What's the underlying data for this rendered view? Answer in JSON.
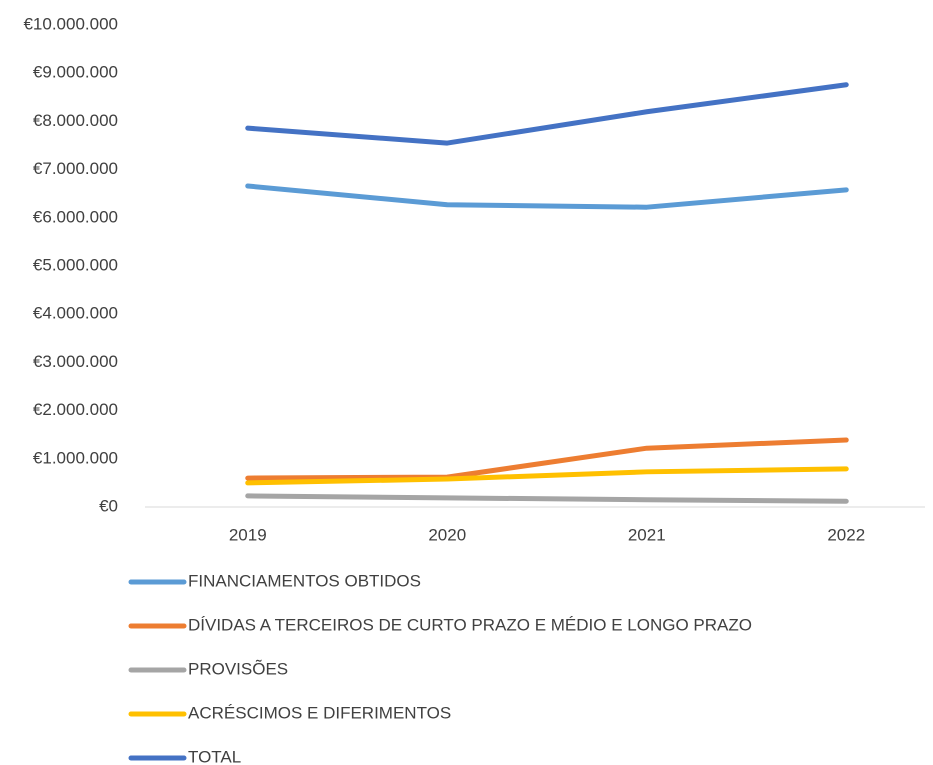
{
  "chart_data": {
    "type": "line",
    "categories": [
      "2019",
      "2020",
      "2021",
      "2022"
    ],
    "series": [
      {
        "name": "FINANCIAMENTOS OBTIDOS",
        "color": "#5b9bd5",
        "values": [
          6660000,
          6270000,
          6220000,
          6580000
        ]
      },
      {
        "name": "DÍVIDAS A TERCEIROS DE CURTO PRAZO E MÉDIO E LONGO PRAZO",
        "color": "#ed7d31",
        "values": [
          600000,
          620000,
          1220000,
          1390000
        ]
      },
      {
        "name": "PROVISÕES",
        "color": "#a5a5a5",
        "values": [
          230000,
          190000,
          150000,
          120000
        ]
      },
      {
        "name": "ACRÉSCIMOS E DIFERIMENTOS",
        "color": "#ffc000",
        "values": [
          500000,
          580000,
          730000,
          790000
        ]
      },
      {
        "name": "TOTAL",
        "color": "#4472c4",
        "values": [
          7860000,
          7550000,
          8200000,
          8760000
        ]
      }
    ],
    "ylim": [
      0,
      10000000
    ],
    "yticks": [
      {
        "value": 0,
        "label": "€0"
      },
      {
        "value": 1000000,
        "label": "€1.000.000"
      },
      {
        "value": 2000000,
        "label": "€2.000.000"
      },
      {
        "value": 3000000,
        "label": "€3.000.000"
      },
      {
        "value": 4000000,
        "label": "€4.000.000"
      },
      {
        "value": 5000000,
        "label": "€5.000.000"
      },
      {
        "value": 6000000,
        "label": "€6.000.000"
      },
      {
        "value": 7000000,
        "label": "€7.000.000"
      },
      {
        "value": 8000000,
        "label": "€8.000.000"
      },
      {
        "value": 9000000,
        "label": "€9.000.000"
      },
      {
        "value": 10000000,
        "label": "€10.000.000"
      }
    ],
    "grid": false,
    "legend": "bottom"
  }
}
